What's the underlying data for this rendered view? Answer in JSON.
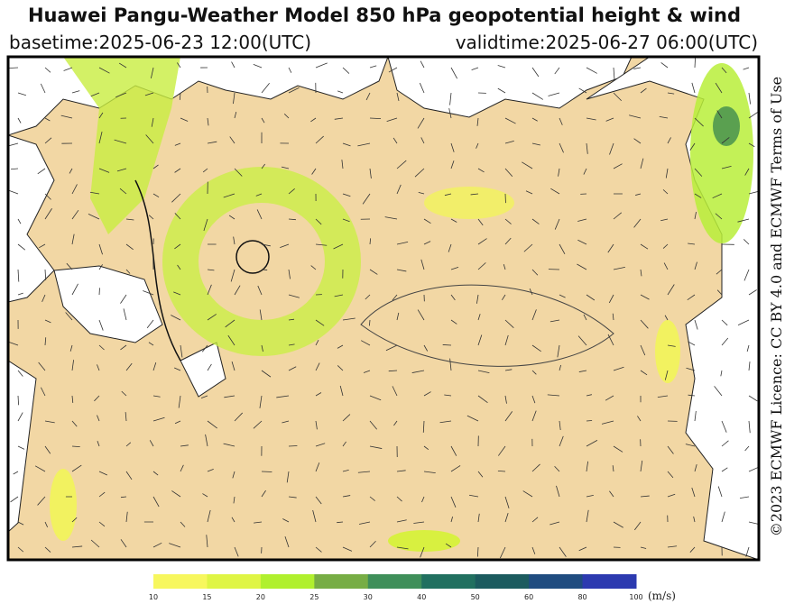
{
  "header": {
    "title": "Huawei Pangu-Weather Model 850 hPa geopotential height & wind",
    "basetime": "basetime:2025-06-23 12:00(UTC)",
    "validtime": "validtime:2025-06-27 06:00(UTC)"
  },
  "colorbar": {
    "ticks": [
      10,
      15,
      20,
      25,
      30,
      40,
      50,
      60,
      80,
      100
    ],
    "colors": [
      "#f7f75e",
      "#dff545",
      "#b0f02e",
      "#77ad45",
      "#3f8f5a",
      "#217060",
      "#1c5b5f",
      "#1f4c80",
      "#2c3ab0"
    ],
    "unit": "(m/s)"
  },
  "licence": "©2023 ECMWF Licence: CC BY 4.0 and ECMWF Terms of Use"
}
